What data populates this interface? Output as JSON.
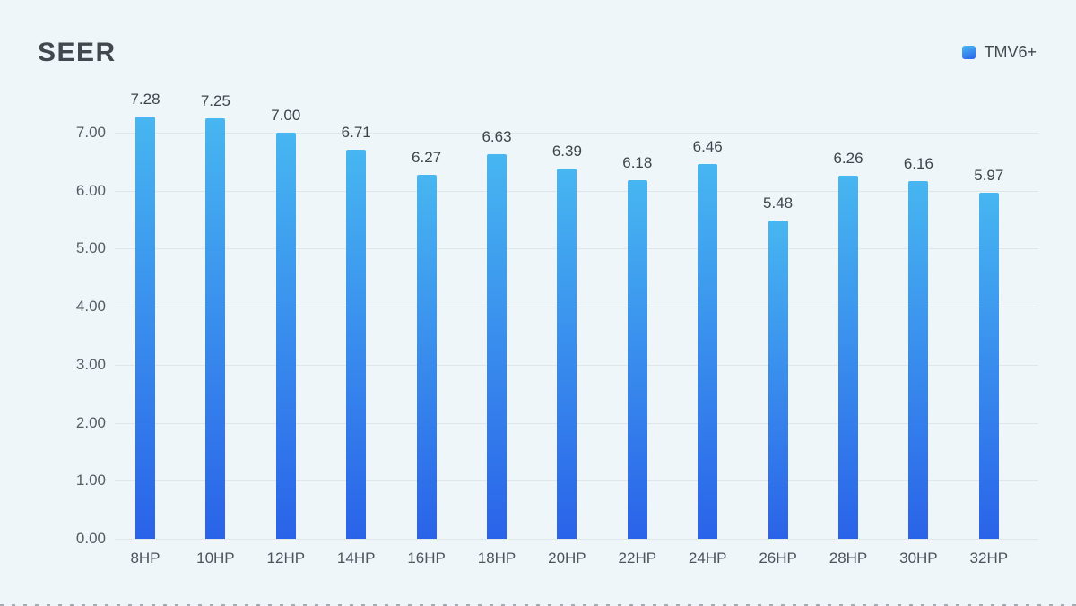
{
  "header": {
    "title": "SEER"
  },
  "legend": {
    "label": "TMV6+",
    "swatch_gradient": [
      "#49b8f2",
      "#2a64ea"
    ]
  },
  "chart_data": {
    "type": "bar",
    "title": "SEER",
    "xlabel": "",
    "ylabel": "",
    "categories": [
      "8HP",
      "10HP",
      "12HP",
      "14HP",
      "16HP",
      "18HP",
      "20HP",
      "22HP",
      "24HP",
      "26HP",
      "28HP",
      "30HP",
      "32HP"
    ],
    "series": [
      {
        "name": "TMV6+",
        "values": [
          7.28,
          7.25,
          7.0,
          6.71,
          6.27,
          6.63,
          6.39,
          6.18,
          6.46,
          5.48,
          6.26,
          6.16,
          5.97
        ]
      }
    ],
    "value_labels": [
      "7.28",
      "7.25",
      "7.00",
      "6.71",
      "6.27",
      "6.63",
      "6.39",
      "6.18",
      "6.46",
      "5.48",
      "6.26",
      "6.16",
      "5.97"
    ],
    "y_ticks": [
      "0.00",
      "1.00",
      "2.00",
      "3.00",
      "4.00",
      "5.00",
      "6.00",
      "7.00"
    ],
    "ylim": [
      0,
      7
    ],
    "grid": true,
    "legend_position": "top-right",
    "bar_gradient": [
      "#47b6f1",
      "#2a63e9"
    ]
  }
}
